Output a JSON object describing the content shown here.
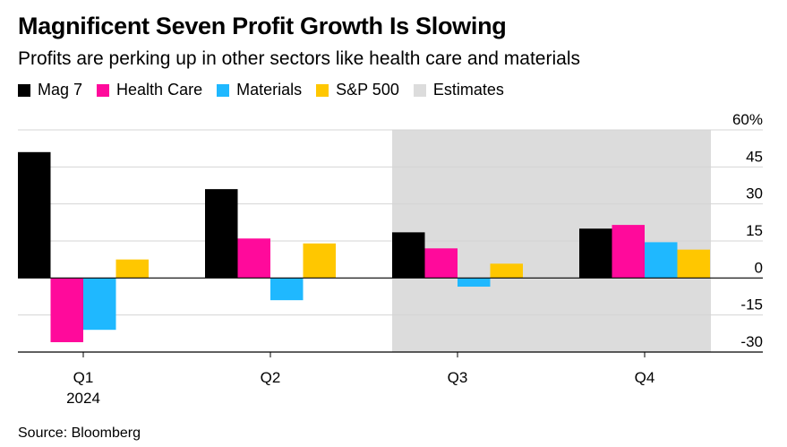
{
  "title": "Magnificent Seven Profit Growth Is Slowing",
  "subtitle": "Profits are perking up in other sectors like health care and materials",
  "source": "Source: Bloomberg",
  "legend": [
    {
      "name": "Mag 7",
      "color": "#000000"
    },
    {
      "name": "Health Care",
      "color": "#ff0a9b"
    },
    {
      "name": "Materials",
      "color": "#1fb8ff"
    },
    {
      "name": "S&P 500",
      "color": "#ffc700"
    },
    {
      "name": "Estimates",
      "color": "#dcdcdc"
    }
  ],
  "chart_data": {
    "type": "bar",
    "title": "Magnificent Seven Profit Growth Is Slowing",
    "categories": [
      "Q1",
      "Q2",
      "Q3",
      "Q4"
    ],
    "category_sublabels": [
      "2024",
      "",
      "",
      ""
    ],
    "series": [
      {
        "name": "Mag 7",
        "color": "#000000",
        "values": [
          51,
          36,
          18.5,
          20
        ]
      },
      {
        "name": "Health Care",
        "color": "#ff0a9b",
        "values": [
          -26,
          16,
          12,
          21.5
        ]
      },
      {
        "name": "Materials",
        "color": "#1fb8ff",
        "values": [
          -21,
          -9,
          -3.5,
          14.5
        ]
      },
      {
        "name": "S&P 500",
        "color": "#ffc700",
        "values": [
          7.5,
          14,
          5.8,
          11.5
        ]
      }
    ],
    "estimates": {
      "label": "Estimates",
      "categories": [
        "Q3",
        "Q4"
      ],
      "color": "#dcdcdc"
    },
    "yaxis": {
      "position": "right",
      "ticks": [
        60,
        45,
        30,
        15,
        0,
        -15,
        -30
      ],
      "tick_labels": [
        "60%",
        "45",
        "30",
        "15",
        "0",
        "-15",
        "-30"
      ],
      "ylim": [
        -30,
        60
      ]
    },
    "xlabel": "",
    "ylabel": ""
  }
}
